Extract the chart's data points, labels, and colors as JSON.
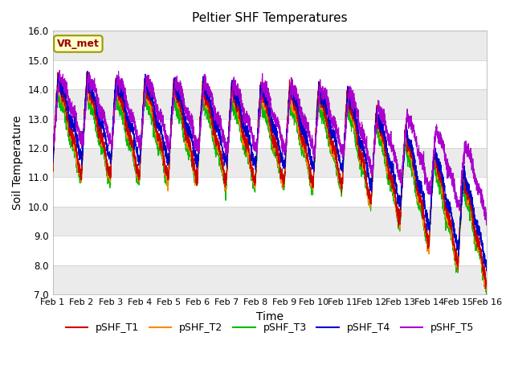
{
  "title": "Peltier SHF Temperatures",
  "xlabel": "Time",
  "ylabel": "Soil Temperature",
  "ylim": [
    7.0,
    16.0
  ],
  "yticks": [
    7.0,
    8.0,
    9.0,
    10.0,
    11.0,
    12.0,
    13.0,
    14.0,
    15.0,
    16.0
  ],
  "n_days": 15,
  "x_tick_labels": [
    "Feb 1",
    "Feb 2",
    "Feb 3",
    "Feb 4",
    "Feb 5",
    "Feb 6",
    "Feb 7",
    "Feb 8",
    "Feb 9",
    "Feb 10",
    "Feb 11",
    "Feb 12",
    "Feb 13",
    "Feb 14",
    "Feb 15",
    "Feb 16"
  ],
  "colors": {
    "T1": "#cc0000",
    "T2": "#ff8800",
    "T3": "#00bb00",
    "T4": "#0000cc",
    "T5": "#aa00cc"
  },
  "legend_labels": [
    "pSHF_T1",
    "pSHF_T2",
    "pSHF_T3",
    "pSHF_T4",
    "pSHF_T5"
  ],
  "vr_label": "VR_met",
  "band_light": "#ebebeb",
  "band_dark": "#d8d8d8",
  "bg_white": "#ffffff",
  "title_fontsize": 11,
  "label_fontsize": 10,
  "tick_fontsize": 8.5,
  "legend_fontsize": 9
}
